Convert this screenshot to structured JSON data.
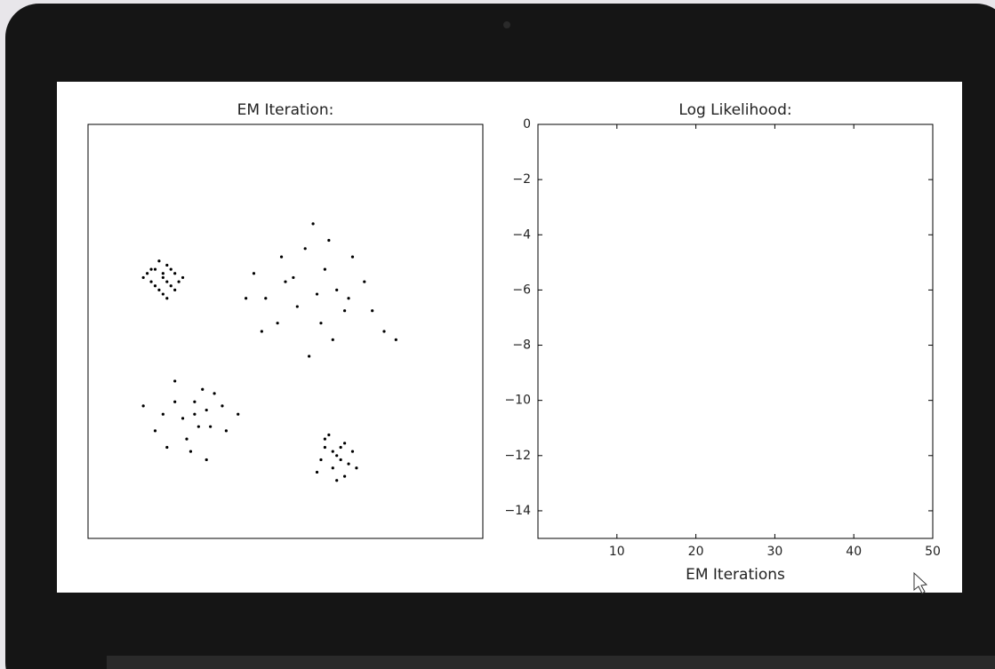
{
  "chart_data": [
    {
      "type": "scatter",
      "title": "EM Iteration:",
      "color": "#000000",
      "xlim": [
        0,
        100
      ],
      "ylim": [
        0,
        100
      ],
      "x": [
        19,
        17,
        21,
        16,
        22,
        18,
        20,
        15,
        23,
        19,
        18,
        21,
        17,
        20,
        22,
        16,
        19,
        24,
        14,
        20,
        58,
        50,
        65,
        45,
        70,
        55,
        62,
        48,
        60,
        42,
        72,
        53,
        67,
        57,
        63,
        49,
        75,
        44,
        59,
        52,
        66,
        56,
        40,
        78,
        61,
        27,
        22,
        31,
        19,
        34,
        25,
        29,
        24,
        30,
        17,
        35,
        26,
        22,
        28,
        32,
        20,
        38,
        27,
        14,
        30,
        63,
        60,
        66,
        62,
        65,
        59,
        67,
        63,
        61,
        64,
        58,
        68,
        62,
        65,
        60,
        64
      ],
      "values": [
        63,
        65,
        61,
        62,
        64,
        60,
        66,
        64,
        62,
        59,
        67,
        65,
        61,
        62,
        60,
        65,
        64,
        63,
        63,
        58,
        59,
        62,
        55,
        58,
        62,
        70,
        48,
        52,
        65,
        64,
        55,
        56,
        68,
        76,
        60,
        68,
        50,
        50,
        52,
        63,
        58,
        44,
        58,
        48,
        72,
        30,
        33,
        27,
        30,
        32,
        24,
        36,
        29,
        31,
        26,
        26,
        21,
        38,
        27,
        35,
        22,
        30,
        33,
        32,
        19,
        20,
        22,
        18,
        17,
        23,
        19,
        21,
        14,
        25,
        19,
        16,
        17,
        21,
        15,
        24,
        22
      ]
    },
    {
      "type": "line",
      "title": "Log Likelihood:",
      "xlabel": "EM Iterations",
      "color": "#0000ff",
      "x": [],
      "values": [],
      "xlim": [
        0,
        50
      ],
      "xticks": [
        10,
        20,
        30,
        40,
        50
      ],
      "ylim": [
        -15,
        0
      ],
      "yticks": [
        0,
        {
          "value": -2,
          "label": "−2"
        },
        {
          "value": -4,
          "label": "−4"
        },
        {
          "value": -6,
          "label": "−6"
        },
        {
          "value": -8,
          "label": "−8"
        },
        {
          "value": -10,
          "label": "−10"
        },
        {
          "value": -12,
          "label": "−12"
        },
        {
          "value": -14,
          "label": "−14"
        }
      ]
    }
  ]
}
